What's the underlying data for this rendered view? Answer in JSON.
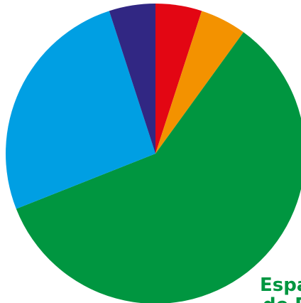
{
  "chart_data": {
    "type": "pie",
    "title": "",
    "slices": [
      {
        "label": "",
        "value": 5,
        "color": "#E30613"
      },
      {
        "label": "",
        "value": 5,
        "color": "#F39200"
      },
      {
        "label": "",
        "value": 59,
        "color": "#009640"
      },
      {
        "label": "",
        "value": 26,
        "color": "#009FE3"
      },
      {
        "label": "",
        "value": 5,
        "color": "#312783"
      }
    ],
    "start_angle_deg": 0,
    "direction": "clockwise",
    "visible_labels": [
      {
        "text": "Espa",
        "color": "#009640"
      },
      {
        "text": "de D",
        "color": "#009640"
      }
    ]
  }
}
